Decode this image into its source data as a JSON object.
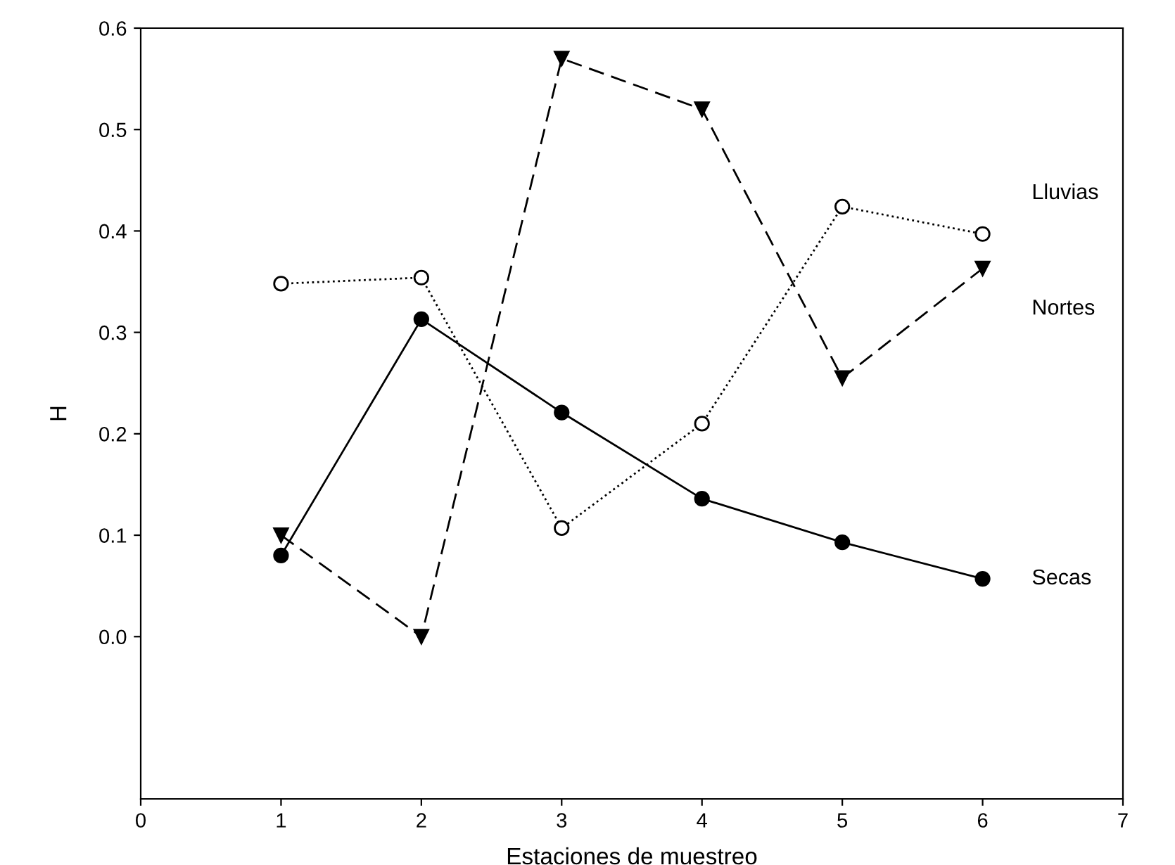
{
  "chart_data": {
    "type": "line",
    "xlabel": "Estaciones de muestreo",
    "ylabel": "H",
    "x": [
      1,
      2,
      3,
      4,
      5,
      6
    ],
    "series": [
      {
        "name": "Lluvias",
        "color": "#000000",
        "values": [
          0.348,
          0.354,
          0.107,
          0.21,
          0.424,
          0.397
        ],
        "marker": "open circle",
        "line_style": "dotted"
      },
      {
        "name": "Nortes",
        "color": "#000000",
        "values": [
          0.1,
          0.0,
          0.57,
          0.52,
          0.255,
          0.363
        ],
        "marker": "triangle down",
        "line_style": "dashed"
      },
      {
        "name": "Secas",
        "color": "#000000",
        "values": [
          0.08,
          0.313,
          0.221,
          0.136,
          0.093,
          0.057
        ],
        "marker": "circle",
        "line_style": "solid"
      }
    ],
    "xlim": [
      0,
      7
    ],
    "ylim": [
      -0.16,
      0.6
    ],
    "xticks": [
      0,
      1,
      2,
      3,
      4,
      5,
      6,
      7
    ],
    "yticks": [
      {
        "value": 0,
        "label": "0.0"
      },
      {
        "value": 0.1,
        "label": "0.1"
      },
      {
        "value": 0.2,
        "label": "0.2"
      },
      {
        "value": 0.3,
        "label": "0.3"
      },
      {
        "value": 0.4,
        "label": "0.4"
      },
      {
        "value": 0.5,
        "label": "0.5"
      },
      {
        "value": 0.6,
        "label": "0.6"
      }
    ],
    "grid": false,
    "legend": false
  }
}
